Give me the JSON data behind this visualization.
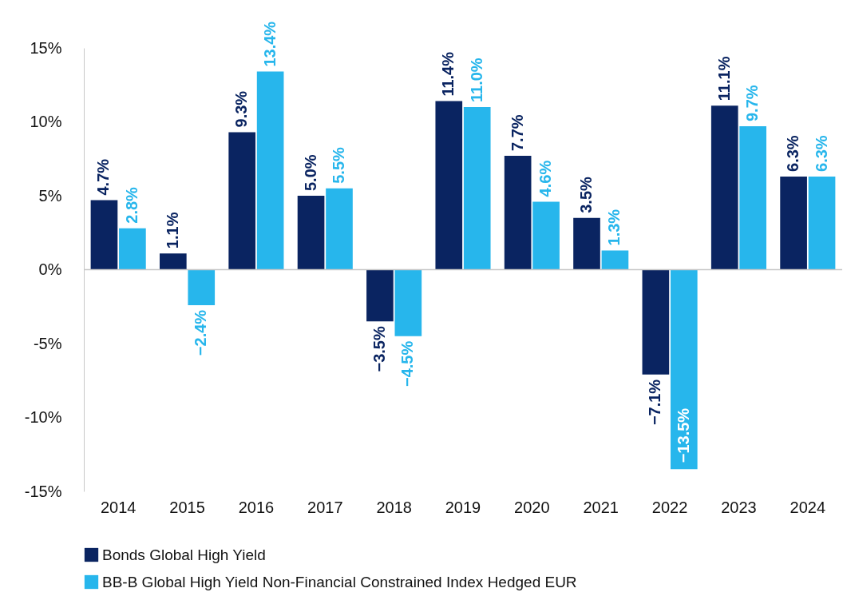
{
  "chart_data": {
    "type": "bar",
    "categories": [
      "2014",
      "2015",
      "2016",
      "2017",
      "2018",
      "2019",
      "2020",
      "2021",
      "2022",
      "2023",
      "2024"
    ],
    "series": [
      {
        "name": "Bonds Global High Yield",
        "color": "#0a2461",
        "values": [
          4.7,
          1.1,
          9.3,
          5.0,
          -3.5,
          11.4,
          7.7,
          3.5,
          -7.1,
          11.1,
          6.3
        ],
        "value_labels": [
          "4.7%",
          "1.1%",
          "9.3%",
          "5.0%",
          "−3.5%",
          "11.4%",
          "7.7%",
          "3.5%",
          "−7.1%",
          "11.1%",
          "6.3%"
        ]
      },
      {
        "name": "BB-B Global High Yield Non-Financial Constrained Index Hedged EUR",
        "color": "#27b6ec",
        "values": [
          2.8,
          -2.4,
          13.4,
          5.5,
          -4.5,
          11.0,
          4.6,
          1.3,
          -13.5,
          9.7,
          6.3
        ],
        "value_labels": [
          "2.8%",
          "−2.4%",
          "13.4%",
          "5.5%",
          "−4.5%",
          "11.0%",
          "4.6%",
          "1.3%",
          "−13.5%",
          "9.7%",
          "6.3%"
        ]
      }
    ],
    "ylim": [
      -15,
      15
    ],
    "yticks": [
      {
        "value": -15,
        "label": "-15%"
      },
      {
        "value": -10,
        "label": "-10%"
      },
      {
        "value": -5,
        "label": "-5%"
      },
      {
        "value": 0,
        "label": "0%"
      },
      {
        "value": 5,
        "label": "5%"
      },
      {
        "value": 10,
        "label": "10%"
      },
      {
        "value": 15,
        "label": "15%"
      }
    ],
    "ref_lines": [
      {
        "axis": "y",
        "value": 0,
        "color": "#c8c8c8"
      }
    ],
    "grid": false,
    "legend": "bottom"
  }
}
